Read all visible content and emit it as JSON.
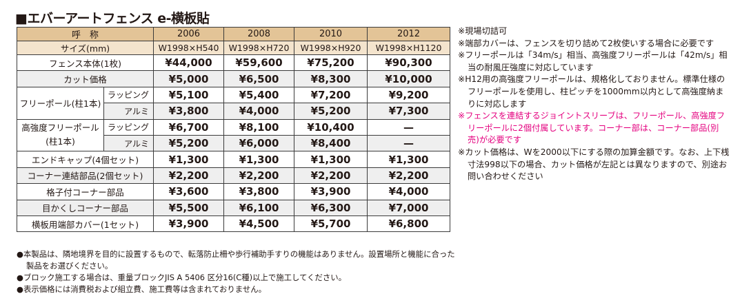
{
  "title": "■エバーアートフェンス e-横板貼",
  "table": {
    "header": {
      "label": "呼　称",
      "cols": [
        "2006",
        "2008",
        "2010",
        "2012"
      ]
    },
    "size": {
      "label": "サイズ(mm)",
      "cols": [
        "W1998×H540",
        "W1998×H720",
        "W1998×H920",
        "W1998×H1120"
      ]
    },
    "fence": {
      "label": "フェンス本体(1枚)",
      "prices": [
        "¥44,000",
        "¥59,600",
        "¥75,200",
        "¥90,300"
      ]
    },
    "cut": {
      "label": "カット価格",
      "prices": [
        "¥5,000",
        "¥6,500",
        "¥8,300",
        "¥10,000"
      ]
    },
    "pole": {
      "label": "フリーポール(柱1本)",
      "wrap_label": "ラッピング",
      "wrap": [
        "¥5,100",
        "¥5,400",
        "¥7,200",
        "¥9,200"
      ],
      "alu_label": "アルミ",
      "alu": [
        "¥3,800",
        "¥4,000",
        "¥5,200",
        "¥7,300"
      ]
    },
    "hpole": {
      "label1": "高強度フリーポール",
      "label2": "(柱1本)",
      "wrap_label": "ラッピング",
      "wrap": [
        "¥6,700",
        "¥8,100",
        "¥10,400",
        "—"
      ],
      "alu_label": "アルミ",
      "alu": [
        "¥5,200",
        "¥6,000",
        "¥8,400",
        "—"
      ]
    },
    "rows": [
      {
        "label": "エンドキャップ(4個セット)",
        "prices": [
          "¥1,300",
          "¥1,300",
          "¥1,300",
          "¥1,300"
        ]
      },
      {
        "label": "コーナー連結部品(2個セット)",
        "prices": [
          "¥2,200",
          "¥2,200",
          "¥2,200",
          "¥2,200"
        ]
      },
      {
        "label": "格子付コーナー部品",
        "prices": [
          "¥3,600",
          "¥3,800",
          "¥3,900",
          "¥4,000"
        ]
      },
      {
        "label": "目かくしコーナー部品",
        "prices": [
          "¥5,500",
          "¥6,100",
          "¥6,300",
          "¥7,000"
        ]
      },
      {
        "label": "横板用端部カバー(1セット)",
        "prices": [
          "¥3,900",
          "¥4,500",
          "¥5,700",
          "¥6,800"
        ]
      }
    ]
  },
  "notes": [
    "※現場切詰可",
    "※端部カバーは、フェンスを切り詰めて2枚使いする場合に必要です",
    "※フリーポールは「34m/s」相当、高強度フリーポールは「42m/s」相当の耐風圧強度に対応しています",
    "※H12用の高強度フリーポールは、規格化しておりません。標準仕様のフリーポールを使用し、柱ピッチを1000mm以内として高強度納まりに対応します",
    "※フェンスを連結するジョイントスリーブは、フリーポール、高強度フリーポールに2個付属しています。コーナー部は、コーナー部品(別売)が必要です",
    "※カット価格は、Wを2000以下にする際の加算金額です。なお、上下桟寸法998以下の場合、カット価格が左記とは異なりますので、別途お問い合わせください"
  ],
  "footnotes": [
    "●本製品は、隣地境界を目的に設置するもので、転落防止柵や歩行補助手すりの機能はありません。設置場所と機能に合った製品をお選びください。",
    "●ブロック施工する場合は、重量ブロックJIS A 5406 区分16(C種)以上で施工してください。",
    "●表示価格には消費税および組立費、施工費等は含まれておりません。"
  ],
  "colors": {
    "header": "#e3c497",
    "size_row": "#f4e4cd",
    "stripe": "#efefef",
    "highlight": "#e4007f"
  }
}
